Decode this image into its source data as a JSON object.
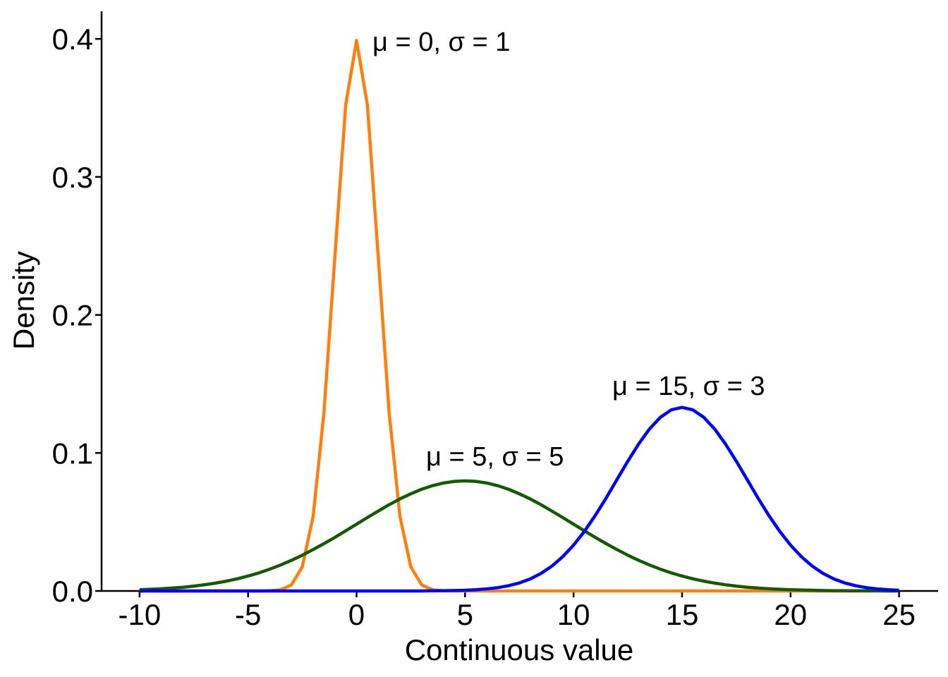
{
  "chart_data": {
    "type": "line",
    "xlabel": "Continuous value",
    "ylabel": "Density",
    "x": [
      -10,
      -9.5,
      -9,
      -8.5,
      -8,
      -7.5,
      -7,
      -6.5,
      -6,
      -5.5,
      -5,
      -4.5,
      -4,
      -3.5,
      -3,
      -2.5,
      -2,
      -1.5,
      -1,
      -0.5,
      0,
      0.5,
      1,
      1.5,
      2,
      2.5,
      3,
      3.5,
      4,
      4.5,
      5,
      5.5,
      6,
      6.5,
      7,
      7.5,
      8,
      8.5,
      9,
      9.5,
      10,
      10.5,
      11,
      11.5,
      12,
      12.5,
      13,
      13.5,
      14,
      14.5,
      15,
      15.5,
      16,
      16.5,
      17,
      17.5,
      18,
      18.5,
      19,
      19.5,
      20,
      20.5,
      21,
      21.5,
      22,
      22.5,
      23,
      23.5,
      24,
      24.5,
      25
    ],
    "series": [
      {
        "name": "μ = 0, σ = 1",
        "color": "#ff7f0e",
        "values": [
          0,
          0,
          0,
          0,
          0,
          0,
          0,
          0,
          0,
          0,
          0,
          0,
          0.0001,
          0.0009,
          0.0044,
          0.0175,
          0.054,
          0.1295,
          0.242,
          0.3521,
          0.3989,
          0.3521,
          0.242,
          0.1295,
          0.054,
          0.0175,
          0.0044,
          0.0009,
          0.0001,
          0,
          0,
          0,
          0,
          0,
          0,
          0,
          0,
          0,
          0,
          0,
          0,
          0,
          0,
          0,
          0,
          0,
          0,
          0,
          0,
          0,
          0,
          0,
          0,
          0,
          0,
          0,
          0,
          0,
          0,
          0,
          0,
          0,
          0,
          0,
          0,
          0,
          0,
          0,
          0,
          0,
          0
        ]
      },
      {
        "name": "μ = 5, σ = 5",
        "color": "#145a00",
        "values": [
          0.0009,
          0.0012,
          0.0016,
          0.0021,
          0.0027,
          0.0035,
          0.0045,
          0.0057,
          0.0071,
          0.0088,
          0.0108,
          0.0131,
          0.0158,
          0.0188,
          0.0222,
          0.0259,
          0.03,
          0.0343,
          0.0388,
          0.0436,
          0.0484,
          0.0532,
          0.0579,
          0.0625,
          0.0667,
          0.0704,
          0.0737,
          0.0763,
          0.0782,
          0.0794,
          0.0798,
          0.0794,
          0.0782,
          0.0763,
          0.0737,
          0.0704,
          0.0667,
          0.0625,
          0.0579,
          0.0532,
          0.0484,
          0.0436,
          0.0388,
          0.0343,
          0.03,
          0.0259,
          0.0222,
          0.0188,
          0.0158,
          0.0131,
          0.0108,
          0.0088,
          0.0071,
          0.0057,
          0.0045,
          0.0035,
          0.0027,
          0.0021,
          0.0016,
          0.0012,
          0.0009,
          0.0007,
          0.0005,
          0.0003,
          0.0002,
          0.0002,
          0.0001,
          0.0001,
          0.0001,
          0,
          0
        ]
      },
      {
        "name": "μ = 15, σ = 3",
        "color": "#0000ff",
        "values": [
          0,
          0,
          0,
          0,
          0,
          0,
          0,
          0,
          0,
          0,
          0,
          0,
          0,
          0,
          0,
          0,
          0,
          0,
          0,
          0,
          0,
          0,
          0,
          0,
          0,
          0,
          0,
          0.0001,
          0.0002,
          0.0003,
          0.0005,
          0.0009,
          0.0015,
          0.0024,
          0.0038,
          0.0058,
          0.0087,
          0.0127,
          0.018,
          0.0248,
          0.0332,
          0.0432,
          0.0547,
          0.0673,
          0.0807,
          0.094,
          0.1065,
          0.1174,
          0.1258,
          0.1312,
          0.133,
          0.1312,
          0.1258,
          0.1174,
          0.1065,
          0.094,
          0.0807,
          0.0673,
          0.0547,
          0.0432,
          0.0332,
          0.0248,
          0.018,
          0.0127,
          0.0087,
          0.0058,
          0.0038,
          0.0024,
          0.0015,
          0.0009,
          0.0005
        ]
      }
    ],
    "xlim": [
      -11.75,
      26.8
    ],
    "ylim": [
      0,
      0.42
    ],
    "xticks": [
      -10,
      -5,
      0,
      5,
      10,
      15,
      20,
      25
    ],
    "yticks": [
      {
        "value": 0,
        "label": "0.0"
      },
      0.1,
      0.2,
      0.3,
      0.4
    ],
    "grid": false
  }
}
